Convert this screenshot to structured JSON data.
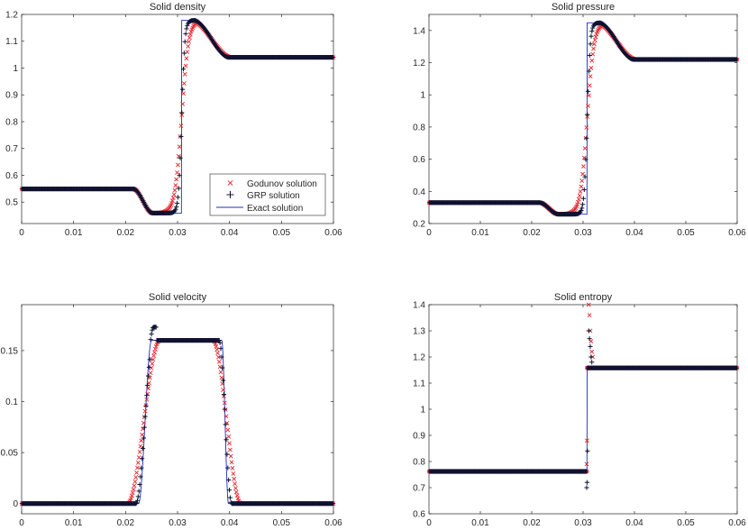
{
  "chart_data": [
    {
      "type": "line",
      "title": "Solid density",
      "xlim": [
        0,
        0.06
      ],
      "ylim": [
        0.42,
        1.2
      ],
      "xticks": [
        0,
        0.01,
        0.02,
        0.03,
        0.04,
        0.05,
        0.06
      ],
      "xtick_labels": [
        "0",
        "0.01",
        "0.02",
        "0.03",
        "0.04",
        "0.05",
        "0.06"
      ],
      "yticks": [
        0.5,
        0.6,
        0.7,
        0.8,
        0.9,
        1.0,
        1.1,
        1.2
      ],
      "ytick_labels": [
        "0.5",
        "0.6",
        "0.7",
        "0.8",
        "0.9",
        "1",
        "1.1",
        "1.2"
      ],
      "legend": {
        "location": "inside lower-right",
        "entries": [
          "Godunov solution",
          "GRP solution",
          "Exact solution"
        ]
      },
      "series": [
        {
          "name": "Godunov solution",
          "marker": "x",
          "color": "#e8242a",
          "profile": {
            "base": 0.549,
            "fan_start": 0.0215,
            "fan_end": 0.0252,
            "plateau1": 0.459,
            "jump1": 0.0308,
            "plateau2": 1.178,
            "fan2_start": 0.0335,
            "fan2_end": 0.0395,
            "end": 1.04,
            "smear": 0.0011
          }
        },
        {
          "name": "GRP solution",
          "marker": "+",
          "color": "#0c1230",
          "profile": {
            "base": 0.549,
            "fan_start": 0.0215,
            "fan_end": 0.0252,
            "plateau1": 0.459,
            "jump1": 0.0308,
            "plateau2": 1.178,
            "fan2_start": 0.0335,
            "fan2_end": 0.0395,
            "end": 1.04,
            "smear": 0.0005
          }
        },
        {
          "name": "Exact solution",
          "line": "solid",
          "color": "#1f2dbf",
          "profile": {
            "base": 0.549,
            "fan_start": 0.0215,
            "fan_end": 0.0252,
            "plateau1": 0.459,
            "jump1": 0.0308,
            "plateau2": 1.178,
            "fan2_start": 0.0335,
            "fan2_end": 0.0395,
            "end": 1.04,
            "smear": 0
          }
        }
      ]
    },
    {
      "type": "line",
      "title": "Solid pressure",
      "xlim": [
        0,
        0.06
      ],
      "ylim": [
        0.2,
        1.5
      ],
      "xticks": [
        0,
        0.01,
        0.02,
        0.03,
        0.04,
        0.05,
        0.06
      ],
      "xtick_labels": [
        "0",
        "0.01",
        "0.02",
        "0.03",
        "0.04",
        "0.05",
        "0.06"
      ],
      "yticks": [
        0.2,
        0.4,
        0.6,
        0.8,
        1.0,
        1.2,
        1.4
      ],
      "ytick_labels": [
        "0.2",
        "0.4",
        "0.6",
        "0.8",
        "1",
        "1.2",
        "1.4"
      ],
      "series": [
        {
          "name": "Godunov solution",
          "marker": "x",
          "color": "#e8242a",
          "profile": {
            "base": 0.33,
            "fan_start": 0.0215,
            "fan_end": 0.0252,
            "plateau1": 0.258,
            "jump1": 0.0308,
            "plateau2": 1.448,
            "fan2_start": 0.0335,
            "fan2_end": 0.0395,
            "end": 1.22,
            "smear": 0.0011
          }
        },
        {
          "name": "GRP solution",
          "marker": "+",
          "color": "#0c1230",
          "profile": {
            "base": 0.33,
            "fan_start": 0.0215,
            "fan_end": 0.0252,
            "plateau1": 0.258,
            "jump1": 0.0308,
            "plateau2": 1.448,
            "fan2_start": 0.0335,
            "fan2_end": 0.0395,
            "end": 1.22,
            "smear": 0.0005
          }
        },
        {
          "name": "Exact solution",
          "line": "solid",
          "color": "#1f2dbf",
          "profile": {
            "base": 0.33,
            "fan_start": 0.0215,
            "fan_end": 0.0252,
            "plateau1": 0.258,
            "jump1": 0.0308,
            "plateau2": 1.448,
            "fan2_start": 0.0335,
            "fan2_end": 0.0395,
            "end": 1.22,
            "smear": 0
          }
        }
      ]
    },
    {
      "type": "line",
      "title": "Solid velocity",
      "xlim": [
        0,
        0.06
      ],
      "ylim": [
        -0.01,
        0.195
      ],
      "xticks": [
        0,
        0.01,
        0.02,
        0.03,
        0.04,
        0.05,
        0.06
      ],
      "xtick_labels": [
        "0",
        "0.01",
        "0.02",
        "0.03",
        "0.04",
        "0.05",
        "0.06"
      ],
      "yticks": [
        0,
        0.05,
        0.1,
        0.15
      ],
      "ytick_labels": [
        "0",
        "0.05",
        "0.1",
        "0.15"
      ],
      "series": [
        {
          "name": "Godunov solution",
          "marker": "x",
          "color": "#e8242a",
          "profile": {
            "base": 0.0,
            "rise_start": 0.0208,
            "rise_end": 0.0262,
            "plateau": 0.16,
            "fall_start": 0.0372,
            "fall_end": 0.0418,
            "end": 0.0,
            "smear": 0.0004
          }
        },
        {
          "name": "GRP solution",
          "marker": "+",
          "color": "#0c1230",
          "profile": {
            "base": 0.0,
            "rise_start": 0.0222,
            "rise_end": 0.0252,
            "plateau": 0.16,
            "fall_start": 0.0382,
            "fall_end": 0.0402,
            "end": 0.0,
            "smear": 0.0002,
            "overshoot": 0.013
          }
        },
        {
          "name": "Exact solution",
          "line": "solid",
          "color": "#1f2dbf",
          "profile": {
            "base": 0.0,
            "rise_start": 0.0225,
            "rise_end": 0.025,
            "plateau": 0.16,
            "fall_start": 0.0385,
            "fall_end": 0.0398,
            "end": 0.0,
            "smear": 0
          }
        }
      ]
    },
    {
      "type": "line",
      "title": "Solid entropy",
      "xlim": [
        0,
        0.06
      ],
      "ylim": [
        0.6,
        1.4
      ],
      "xticks": [
        0,
        0.01,
        0.02,
        0.03,
        0.04,
        0.05,
        0.06
      ],
      "xtick_labels": [
        "0",
        "0.01",
        "0.02",
        "0.03",
        "0.04",
        "0.05",
        "0.06"
      ],
      "yticks": [
        0.6,
        0.7,
        0.8,
        0.9,
        1.0,
        1.1,
        1.2,
        1.3,
        1.4
      ],
      "ytick_labels": [
        "0.6",
        "0.7",
        "0.8",
        "0.9",
        "1",
        "1.1",
        "1.2",
        "1.3",
        "1.4"
      ],
      "series": [
        {
          "name": "Godunov solution",
          "marker": "x",
          "color": "#e8242a",
          "profile": {
            "left": 0.762,
            "jump": 0.0308,
            "right": 1.158,
            "spike": [
              1.4,
              1.36,
              1.3,
              1.26,
              1.22,
              1.2
            ],
            "dip": [
              0.79,
              0.88
            ]
          }
        },
        {
          "name": "GRP solution",
          "marker": "+",
          "color": "#0c1230",
          "profile": {
            "left": 0.762,
            "jump": 0.0308,
            "right": 1.158,
            "spike": [
              1.3,
              1.27,
              1.24,
              1.2,
              1.18
            ],
            "dip": [
              0.7,
              0.72,
              0.84
            ]
          }
        },
        {
          "name": "Exact solution",
          "line": "solid",
          "color": "#1f2dbf",
          "profile": {
            "left": 0.762,
            "jump": 0.0308,
            "right": 1.158
          }
        }
      ]
    }
  ]
}
